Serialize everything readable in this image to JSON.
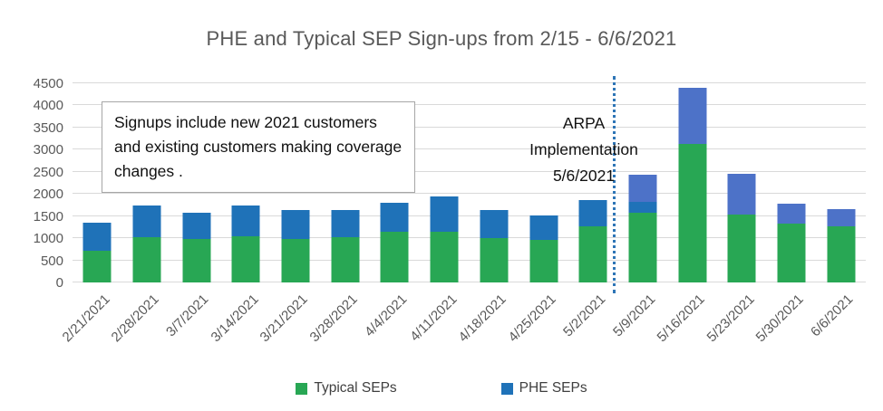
{
  "chart_data": {
    "type": "bar",
    "subtype": "stacked",
    "title": "PHE and Typical SEP Sign-ups from 2/15 - 6/6/2021",
    "xlabel": "",
    "ylabel": "",
    "ylim": [
      0,
      4500
    ],
    "ytick_step": 500,
    "grid": true,
    "legend_position": "bottom",
    "categories": [
      "2/21/2021",
      "2/28/2021",
      "3/7/2021",
      "3/14/2021",
      "3/21/2021",
      "3/28/2021",
      "4/4/2021",
      "4/11/2021",
      "4/18/2021",
      "4/25/2021",
      "5/2/2021",
      "5/9/2021",
      "5/16/2021",
      "5/23/2021",
      "5/30/2021",
      "6/6/2021"
    ],
    "series": [
      {
        "name": "Typical SEPs",
        "color": "#28a754",
        "in_legend": true,
        "values": [
          720,
          1030,
          980,
          1050,
          980,
          1030,
          1150,
          1150,
          1000,
          960,
          1270,
          1580,
          3140,
          1540,
          1340,
          1260
        ]
      },
      {
        "name": "PHE SEPs",
        "color": "#1f72b8",
        "in_legend": true,
        "values": [
          640,
          710,
          600,
          690,
          660,
          610,
          650,
          800,
          640,
          560,
          600,
          240,
          0,
          0,
          0,
          0
        ]
      },
      {
        "name": "PHE SEPs (lighter-blue segments on post-ARPA weeks, not in legend)",
        "color": "#4d72c8",
        "in_legend": false,
        "values": [
          0,
          0,
          0,
          0,
          0,
          0,
          0,
          0,
          0,
          0,
          0,
          620,
          1250,
          910,
          450,
          390
        ]
      }
    ],
    "annotations": {
      "textbox": "Signups include new 2021 customers and existing customers making coverage changes .",
      "arpa": {
        "lines": [
          "ARPA",
          "Implementation",
          "5/6/2021"
        ],
        "divider_between": [
          "5/2/2021",
          "5/9/2021"
        ],
        "divider_color": "#2e75b6"
      }
    }
  }
}
